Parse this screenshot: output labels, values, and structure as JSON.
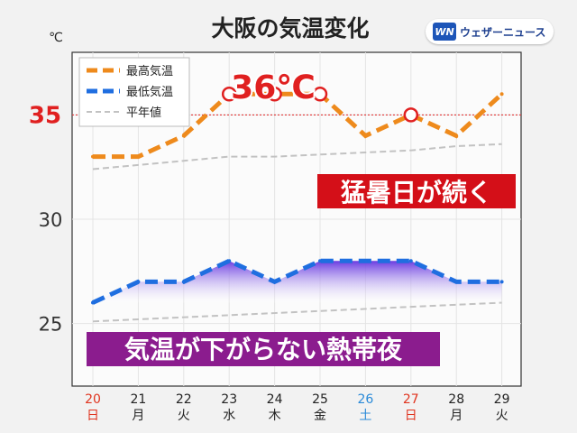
{
  "header": {
    "title": "大阪の気温変化",
    "unit": "℃",
    "brand": "ウェザーニュース",
    "brand_mark": "WN"
  },
  "annotations": {
    "peak_label": "36℃",
    "hot_text": "猛暑日が続く",
    "night_text": "気温が下がらない熱帯夜",
    "threshold_label": "35"
  },
  "colors": {
    "max": "#ee8a1c",
    "min": "#1f6ee0",
    "normal": "#c2c2c2",
    "threshold": "#e02020",
    "night_text": "#8b1c8e",
    "hot_text": "#e8101a",
    "sunday": "#e0341f",
    "saturday": "#2a8ad8",
    "weekday": "#222222"
  },
  "chart_data": {
    "type": "line",
    "title": "大阪の気温変化",
    "ylabel": "℃",
    "ylim": [
      22,
      38
    ],
    "yticks": [
      25,
      30,
      35
    ],
    "grid": true,
    "legend_position": "top-left",
    "threshold": 35,
    "categories": [
      "20",
      "21",
      "22",
      "23",
      "24",
      "25",
      "26",
      "27",
      "28",
      "29"
    ],
    "weekdays": [
      "日",
      "月",
      "火",
      "水",
      "木",
      "金",
      "土",
      "日",
      "月",
      "火"
    ],
    "day_kind": [
      "sun",
      "weekday",
      "weekday",
      "weekday",
      "weekday",
      "weekday",
      "sat",
      "sun",
      "weekday",
      "weekday"
    ],
    "series": [
      {
        "name": "最高気温",
        "values": [
          33,
          33,
          34,
          36,
          36,
          36,
          34,
          35,
          34,
          36
        ],
        "markers": [
          3,
          4,
          5,
          7
        ]
      },
      {
        "name": "最低気温",
        "values": [
          26,
          27,
          27,
          28,
          27,
          28,
          28,
          28,
          27,
          27
        ]
      },
      {
        "name": "平年値",
        "values": [
          32.4,
          32.6,
          32.8,
          33.0,
          33.0,
          33.1,
          33.2,
          33.3,
          33.5,
          33.6
        ]
      },
      {
        "name": "平年値",
        "values": [
          25.1,
          25.2,
          25.3,
          25.4,
          25.5,
          25.6,
          25.7,
          25.8,
          25.9,
          26.0
        ]
      }
    ]
  }
}
